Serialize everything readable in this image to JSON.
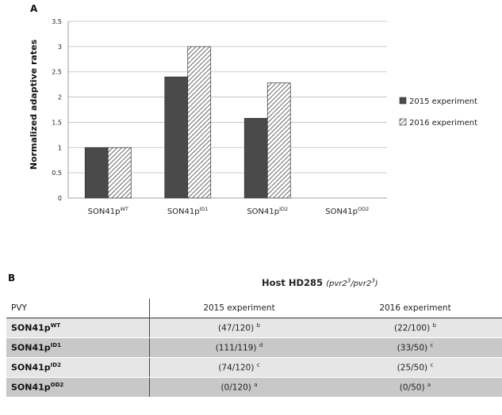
{
  "panel_a_label": "A",
  "panel_b_label": "B",
  "chart_data": {
    "type": "bar",
    "categories": [
      {
        "base": "SON41p",
        "sup": "WT"
      },
      {
        "base": "SON41p",
        "sup": "ID1"
      },
      {
        "base": "SON41p",
        "sup": "ID2"
      },
      {
        "base": "SON41p",
        "sup": "OD2"
      }
    ],
    "series": [
      {
        "name": "2015 experiment",
        "values": [
          1.0,
          2.4,
          1.58,
          0
        ],
        "fill": "solid",
        "color": "#4a4a4a"
      },
      {
        "name": "2016 experiment",
        "values": [
          1.0,
          3.0,
          2.28,
          0
        ],
        "fill": "hatched",
        "color": "#4a4a4a"
      }
    ],
    "ylabel": "Normalized adaptive rates",
    "ylim": [
      0,
      3.5
    ],
    "yticks": [
      "0",
      "0.5",
      "1",
      "1.5",
      "2",
      "2.5",
      "3",
      "3.5"
    ],
    "grid": true,
    "legend_position": "right"
  },
  "table": {
    "title_main": "Host HD285",
    "title_paren_open": "(",
    "title_g1": "pvr2",
    "title_g1_sup": "3",
    "title_slash": "/",
    "title_g2": "pvr2",
    "title_g2_sup": "3",
    "title_paren_close": ")",
    "headers": [
      "PVY",
      "2015 experiment",
      "2016 experiment"
    ],
    "rows": [
      {
        "base": "SON41p",
        "sup": "WT",
        "c2015": "(47/120)",
        "l2015": "b",
        "c2016": "(22/100)",
        "l2016": "b"
      },
      {
        "base": "SON41p",
        "sup": "ID1",
        "c2015": "(111/119)",
        "l2015": "d",
        "c2016": "(33/50)",
        "l2016": "c"
      },
      {
        "base": "SON41p",
        "sup": "ID2",
        "c2015": "(74/120)",
        "l2015": "c",
        "c2016": "(25/50)",
        "l2016": "c"
      },
      {
        "base": "SON41p",
        "sup": "OD2",
        "c2015": "(0/120)",
        "l2015": "a",
        "c2016": "(0/50)",
        "l2016": "a"
      }
    ]
  }
}
